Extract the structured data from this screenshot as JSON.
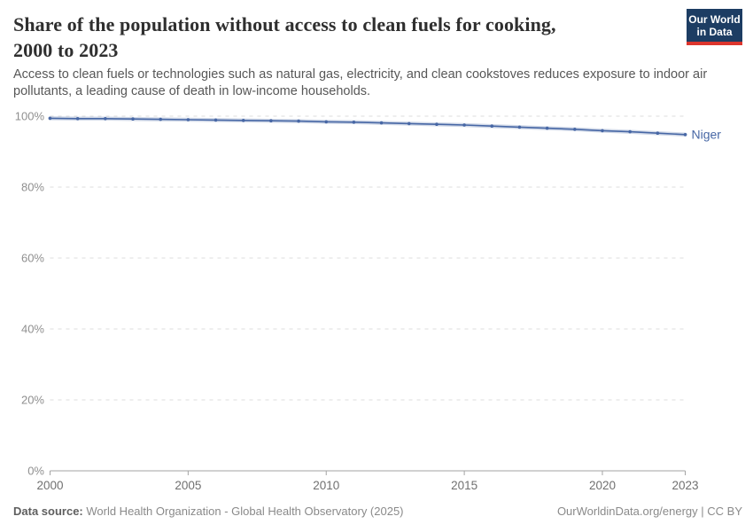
{
  "header": {
    "title_line1": "Share of the population without access to clean fuels for cooking,",
    "title_line2": "2000 to 2023",
    "subtitle": "Access to clean fuels or technologies such as natural gas, electricity, and clean cookstoves reduces exposure to indoor air pollutants, a leading cause of death in low-income households.",
    "logo": {
      "line1": "Our World",
      "line2": "in Data",
      "bg_color": "#1d3d63",
      "accent_color": "#dc352d"
    }
  },
  "chart_data": {
    "type": "line",
    "title": "Share of the population without access to clean fuels for cooking, 2000 to 2023",
    "x": [
      2000,
      2001,
      2002,
      2003,
      2004,
      2005,
      2006,
      2007,
      2008,
      2009,
      2010,
      2011,
      2012,
      2013,
      2014,
      2015,
      2016,
      2017,
      2018,
      2019,
      2020,
      2021,
      2022,
      2023
    ],
    "series": [
      {
        "name": "Niger",
        "color": "#4767a5",
        "values": [
          99.4,
          99.3,
          99.3,
          99.2,
          99.1,
          99.0,
          98.9,
          98.8,
          98.7,
          98.6,
          98.4,
          98.3,
          98.1,
          97.9,
          97.7,
          97.5,
          97.2,
          96.9,
          96.6,
          96.3,
          95.9,
          95.6,
          95.2,
          94.8
        ]
      }
    ],
    "xlabel": "",
    "ylabel": "",
    "ylim": [
      0,
      100
    ],
    "xlim": [
      2000,
      2023
    ],
    "yticks": [
      0,
      20,
      40,
      60,
      80,
      100
    ],
    "ytick_labels": [
      "0%",
      "20%",
      "40%",
      "60%",
      "80%",
      "100%"
    ],
    "xticks": [
      2000,
      2005,
      2010,
      2015,
      2020,
      2023
    ],
    "xtick_labels": [
      "2000",
      "2005",
      "2010",
      "2015",
      "2020",
      "2023"
    ],
    "grid": "horizontal-dashed",
    "legend_position": "end-of-line",
    "grid_color": "#dcdcdc",
    "axis_color": "#a3a3a3"
  },
  "footer": {
    "source_label": "Data source:",
    "source_value": " World Health Organization - Global Health Observatory (2025)",
    "credit": "OurWorldinData.org/energy | CC BY"
  }
}
